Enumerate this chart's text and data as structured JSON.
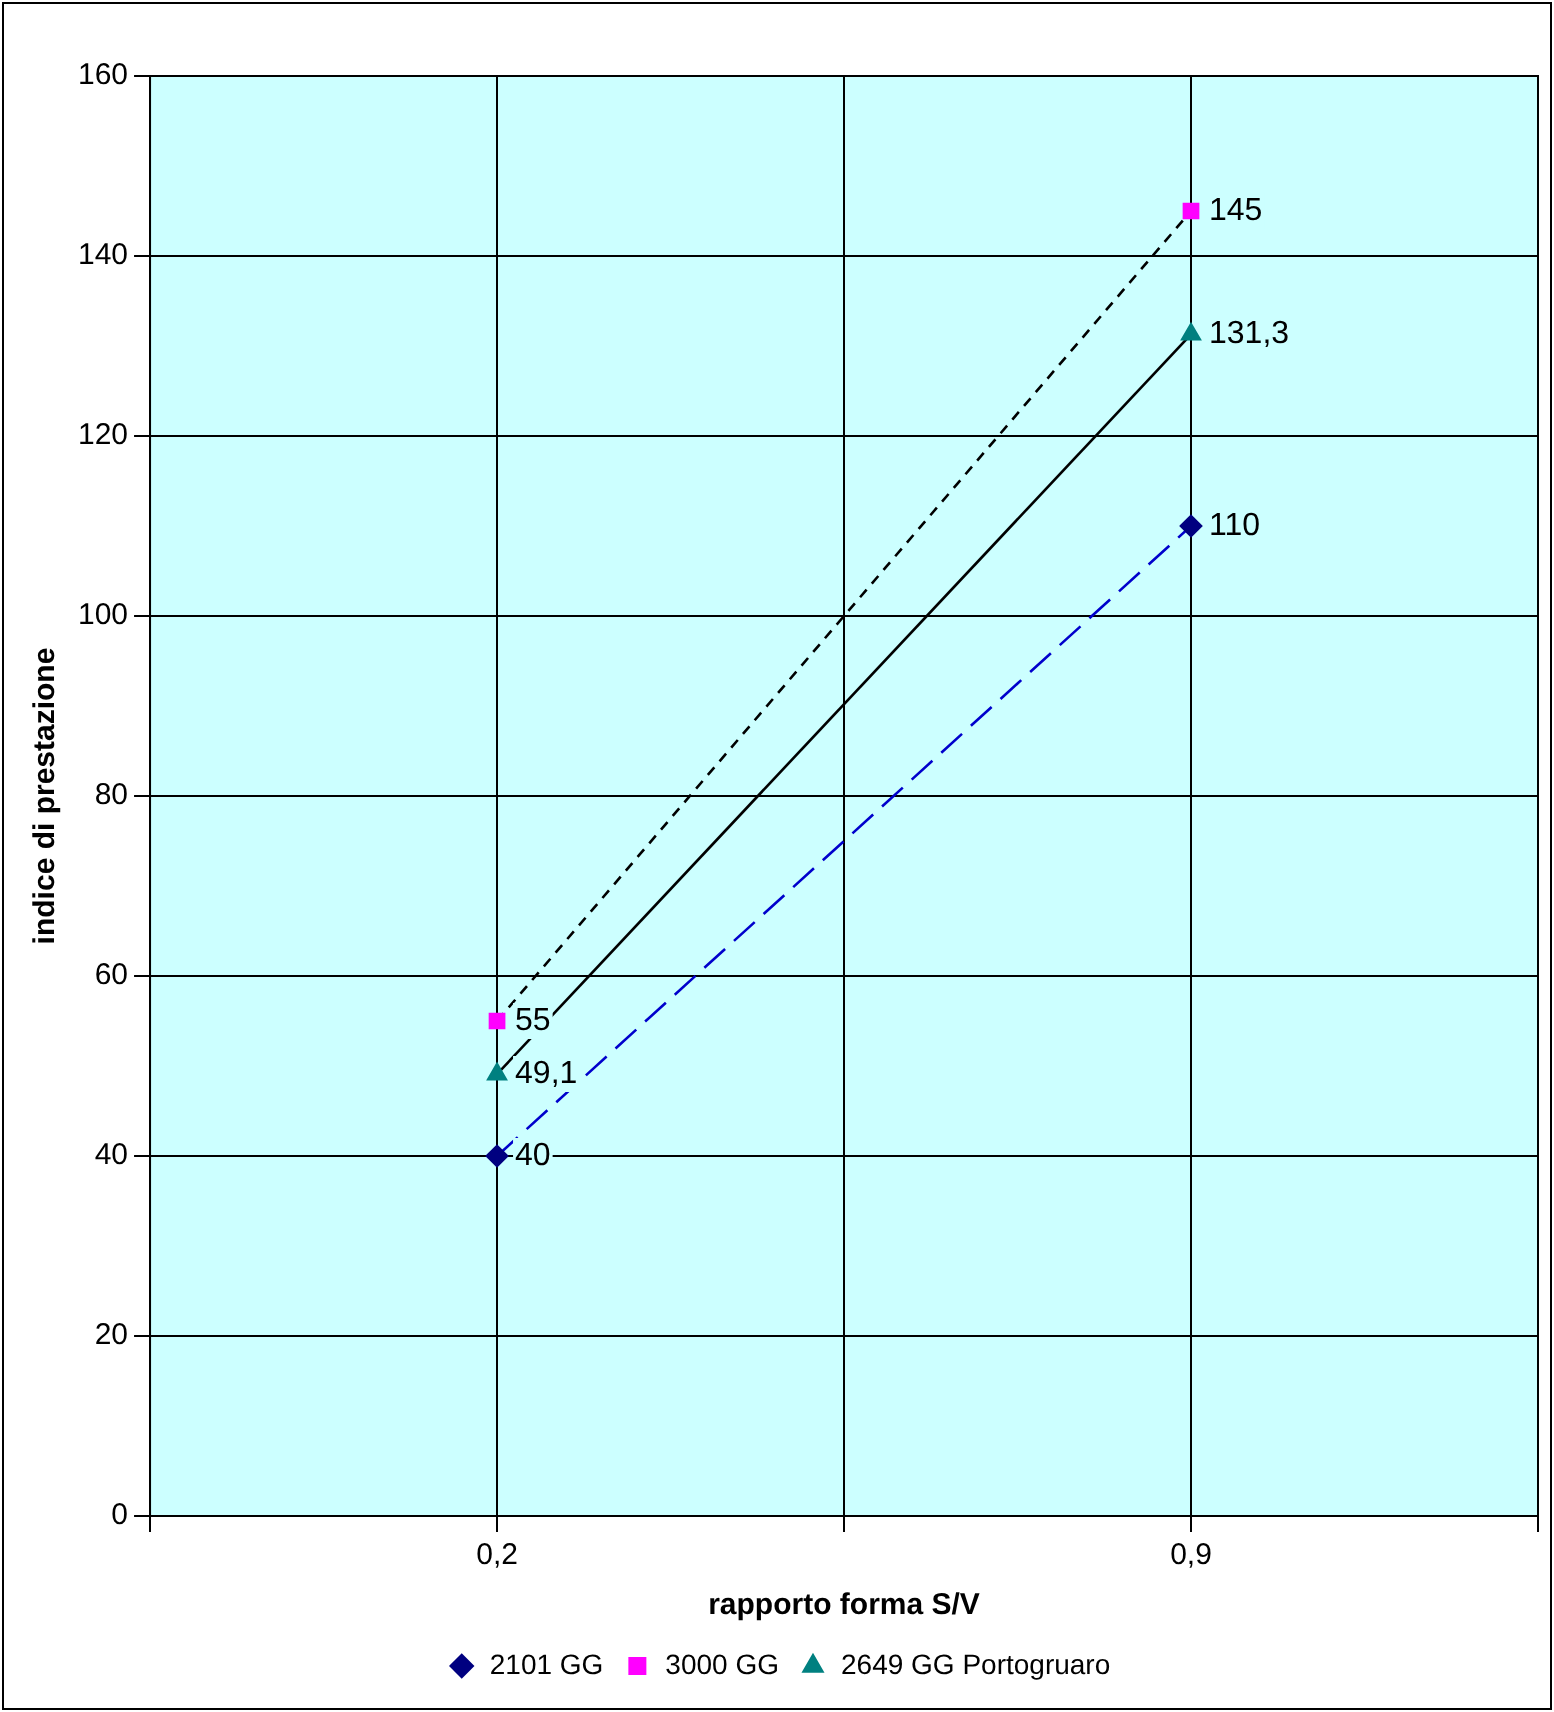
{
  "chart_data": {
    "type": "line",
    "xlabel": "rapporto forma S/V",
    "ylabel": "indice di prestazione",
    "categories": [
      null,
      "0,2",
      null,
      "0,9",
      null
    ],
    "ylim": [
      0,
      160
    ],
    "yticks": [
      0,
      20,
      40,
      60,
      80,
      100,
      120,
      140,
      160
    ],
    "grid": true,
    "legend": "bottom",
    "series": [
      {
        "name": "2101 GG",
        "color": "#0000cc",
        "colors": [
          null,
          "#000080",
          null,
          "#000080",
          null
        ],
        "marker": "diamond",
        "line_style": "dashed",
        "values": [
          null,
          40,
          null,
          110,
          null
        ],
        "value_labels": [
          null,
          "40",
          null,
          "110",
          null
        ]
      },
      {
        "name": "3000 GG",
        "color": "#000000",
        "colors": [
          null,
          "#ff00ff",
          null,
          "#ff00ff",
          null
        ],
        "marker": "square",
        "line_style": "dotted",
        "values": [
          null,
          55,
          null,
          145,
          null
        ],
        "value_labels": [
          null,
          "55",
          null,
          "145",
          null
        ]
      },
      {
        "name": "2649 GG Portogruaro",
        "color": "#000000",
        "colors": [
          null,
          "#008080",
          null,
          "#008080",
          null
        ],
        "marker": "triangle",
        "line_style": "solid",
        "values": [
          null,
          49.1,
          null,
          131.3,
          null
        ],
        "value_labels": [
          null,
          "49,1",
          null,
          "131,3",
          null
        ]
      }
    ]
  }
}
